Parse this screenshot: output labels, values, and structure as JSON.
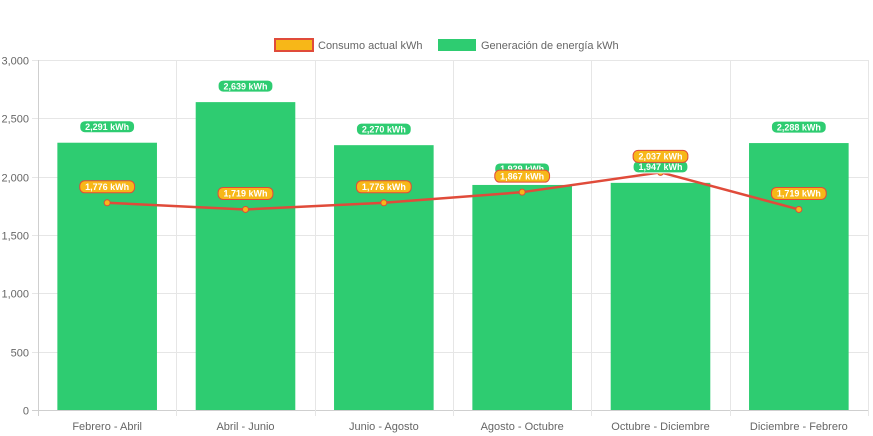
{
  "chart_data": {
    "type": "bar",
    "title": "",
    "xlabel": "",
    "ylabel": "",
    "ylim": [
      0,
      3000
    ],
    "yticks": [
      0,
      500,
      1000,
      1500,
      2000,
      2500,
      3000
    ],
    "ytick_labels": [
      "0",
      "500",
      "1,000",
      "1,500",
      "2,000",
      "2,500",
      "3,000"
    ],
    "grid": true,
    "legend_position": "top-center",
    "categories": [
      "Febrero - Abril",
      "Abril - Junio",
      "Junio - Agosto",
      "Agosto - Octubre",
      "Octubre - Diciembre",
      "Diciembre - Febrero"
    ],
    "series": [
      {
        "name": "Consumo actual kWh",
        "type": "line",
        "values": [
          1776,
          1719,
          1776,
          1867,
          2037,
          1719
        ],
        "labels": [
          "1,776 kWh",
          "1,719 kWh",
          "1,776 kWh",
          "1,867 kWh",
          "2,037 kWh",
          "1,719 kWh"
        ],
        "color": "#e04b3a",
        "point_color": "#f7b718"
      },
      {
        "name": "Generación de energía kWh",
        "type": "bar",
        "values": [
          2291,
          2639,
          2270,
          1929,
          1947,
          2288
        ],
        "labels": [
          "2,291 kWh",
          "2,639 kWh",
          "2,270 kWh",
          "1,929 kWh",
          "1,947 kWh",
          "2,288 kWh"
        ],
        "color": "#2ecc71"
      }
    ]
  }
}
